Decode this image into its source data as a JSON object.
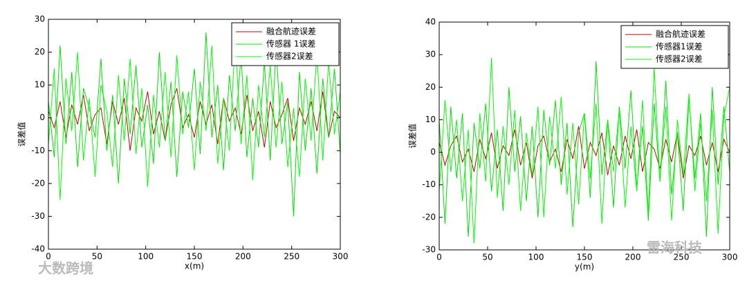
{
  "chart_data": [
    {
      "type": "line",
      "xlabel": "x(m)",
      "ylabel": "误差值",
      "xlim": [
        0,
        300
      ],
      "xticks": [
        0,
        50,
        100,
        150,
        200,
        250,
        300
      ],
      "ylim": [
        -40,
        30
      ],
      "yticks": [
        -40,
        -30,
        -20,
        -10,
        0,
        10,
        20,
        30
      ],
      "legend": "upper right",
      "x": [
        0,
        6,
        12,
        18,
        24,
        30,
        36,
        42,
        48,
        54,
        60,
        66,
        72,
        78,
        84,
        90,
        96,
        102,
        108,
        114,
        120,
        126,
        132,
        138,
        144,
        150,
        156,
        162,
        168,
        174,
        180,
        186,
        192,
        198,
        204,
        210,
        216,
        222,
        228,
        234,
        240,
        246,
        252,
        258,
        264,
        270,
        276,
        282,
        288,
        294,
        300
      ],
      "series": [
        {
          "name": "融合航迹误差",
          "color": "#c00000",
          "values": [
            2,
            -3,
            5,
            -6,
            4,
            -2,
            7,
            -4,
            1,
            3,
            -8,
            5,
            -2,
            6,
            -10,
            3,
            -1,
            8,
            -5,
            2,
            -7,
            4,
            9,
            -3,
            1,
            -6,
            5,
            -2,
            4,
            -8,
            6,
            -1,
            3,
            -5,
            7,
            -4,
            2,
            -9,
            5,
            -3,
            1,
            6,
            -7,
            3,
            -2,
            5,
            -4,
            8,
            -6,
            2,
            0
          ]
        },
        {
          "name": "传感器 1误差",
          "color": "#00e000",
          "values": [
            5,
            -12,
            22,
            -8,
            14,
            -15,
            9,
            3,
            -6,
            18,
            -10,
            7,
            -20,
            12,
            -5,
            16,
            -9,
            4,
            -14,
            20,
            -7,
            11,
            -18,
            8,
            -3,
            15,
            -11,
            26,
            -6,
            10,
            -16,
            13,
            -4,
            19,
            -12,
            6,
            -9,
            17,
            -13,
            21,
            -8,
            5,
            -30,
            14,
            -10,
            9,
            -17,
            12,
            -6,
            15,
            -11
          ]
        },
        {
          "name": "传感器2误差",
          "color": "#00ff00",
          "values": [
            -8,
            15,
            -25,
            12,
            -4,
            20,
            -13,
            6,
            -18,
            10,
            2,
            -15,
            13,
            -7,
            18,
            -11,
            9,
            -21,
            7,
            -9,
            14,
            -12,
            19,
            -5,
            8,
            -16,
            11,
            -4,
            22,
            -14,
            6,
            -10,
            24,
            -8,
            13,
            -19,
            10,
            -6,
            16,
            -9,
            11,
            -15,
            3,
            -18,
            12,
            -7,
            20,
            -13,
            17,
            -5,
            8
          ]
        }
      ]
    },
    {
      "type": "line",
      "xlabel": "y(m)",
      "ylabel": "误差值",
      "xlim": [
        0,
        300
      ],
      "xticks": [
        0,
        50,
        100,
        150,
        200,
        250,
        300
      ],
      "ylim": [
        -30,
        40
      ],
      "yticks": [
        -30,
        -20,
        -10,
        0,
        10,
        20,
        30,
        40
      ],
      "legend": "upper right",
      "x": [
        0,
        6,
        12,
        18,
        24,
        30,
        36,
        42,
        48,
        54,
        60,
        66,
        72,
        78,
        84,
        90,
        96,
        102,
        108,
        114,
        120,
        126,
        132,
        138,
        144,
        150,
        156,
        162,
        168,
        174,
        180,
        186,
        192,
        198,
        204,
        210,
        216,
        222,
        228,
        234,
        240,
        246,
        252,
        258,
        264,
        270,
        276,
        282,
        288,
        294,
        300
      ],
      "series": [
        {
          "name": "融合航迹误差",
          "color": "#c00000",
          "values": [
            3,
            -4,
            2,
            5,
            -3,
            1,
            -6,
            4,
            -2,
            6,
            -5,
            2,
            -1,
            7,
            -4,
            3,
            -8,
            2,
            5,
            -3,
            1,
            -6,
            4,
            -2,
            8,
            -5,
            3,
            -1,
            6,
            -7,
            2,
            -4,
            5,
            -2,
            7,
            -6,
            3,
            1,
            -5,
            4,
            -3,
            6,
            -8,
            2,
            -1,
            5,
            -4,
            3,
            -6,
            4,
            0
          ]
        },
        {
          "name": "传感器1误差",
          "color": "#00e000",
          "values": [
            10,
            -22,
            14,
            -8,
            12,
            -26,
            9,
            -5,
            15,
            -12,
            7,
            -18,
            20,
            -6,
            11,
            -15,
            8,
            -20,
            13,
            -4,
            16,
            -10,
            9,
            -23,
            6,
            12,
            -14,
            28,
            -7,
            10,
            -17,
            14,
            -5,
            19,
            -11,
            8,
            -21,
            15,
            -9,
            22,
            -13,
            6,
            -18,
            17,
            -8,
            12,
            -26,
            20,
            -10,
            14,
            -6
          ]
        },
        {
          "name": "传感器2误差",
          "color": "#00ff00",
          "values": [
            -12,
            16,
            -6,
            10,
            -15,
            7,
            -28,
            12,
            -9,
            29,
            -14,
            8,
            -10,
            13,
            -18,
            6,
            -7,
            14,
            -20,
            11,
            -5,
            17,
            -13,
            9,
            -16,
            12,
            -8,
            15,
            -22,
            10,
            -6,
            13,
            -17,
            8,
            -12,
            16,
            -19,
            26,
            -9,
            14,
            -21,
            10,
            -7,
            18,
            -12,
            9,
            -15,
            13,
            -25,
            11,
            20
          ]
        }
      ]
    }
  ],
  "watermarks": [
    "大数跨境",
    "雷海科技"
  ]
}
